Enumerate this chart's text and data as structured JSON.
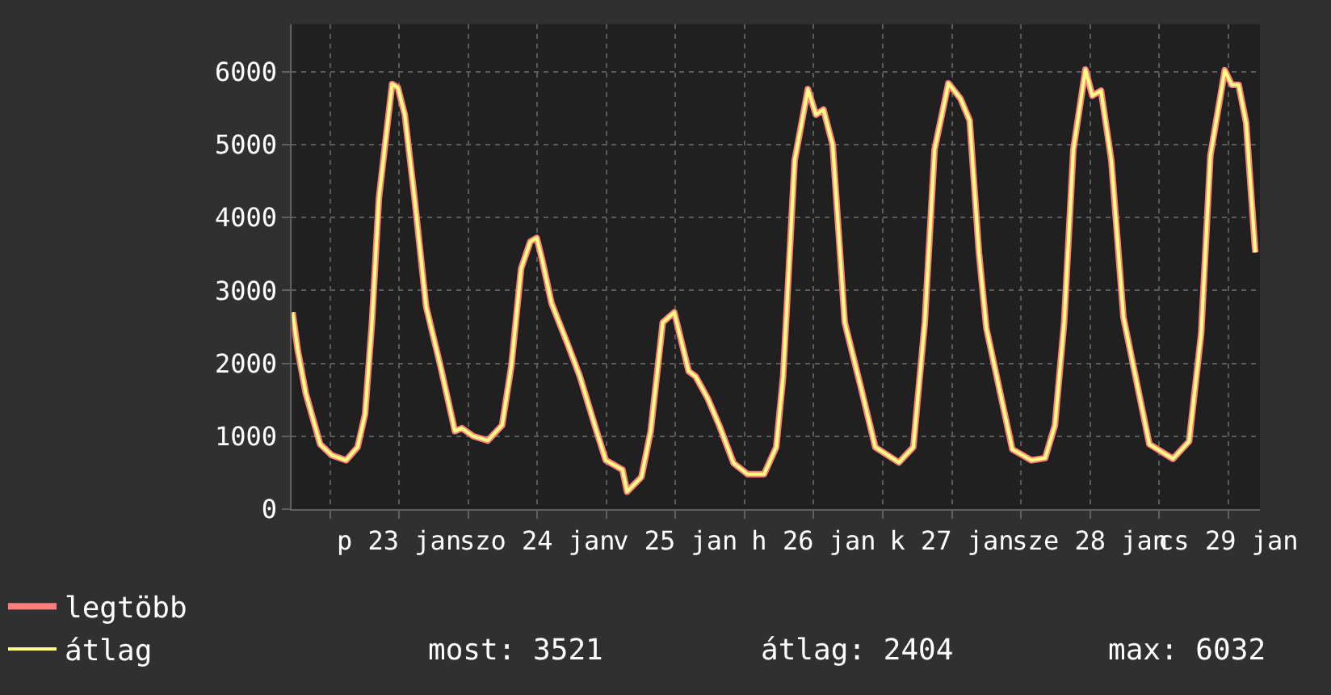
{
  "chart_data": {
    "type": "line",
    "x": [
      "--01-22T17:30",
      "--01-22T18:24",
      "--01-22T19:48",
      "--01-22T22:18",
      "--01-23T00:18",
      "--01-23T02:48",
      "--01-23T04:48",
      "--01-23T06:06",
      "--01-23T07:18",
      "--01-23T08:30",
      "--01-23T09:48",
      "--01-23T10:48",
      "--01-23T11:48",
      "--01-23T13:00",
      "--01-23T14:42",
      "--01-23T16:42",
      "--01-23T19:12",
      "--01-23T21:42",
      "--01-23T22:54",
      "--01-24T00:54",
      "--01-24T03:24",
      "--01-24T05:54",
      "--01-24T07:30",
      "--01-24T09:12",
      "--01-24T10:48",
      "--01-24T11:54",
      "--01-24T12:48",
      "--01-24T14:30",
      "--01-24T17:18",
      "--01-24T19:24",
      "--01-24T22:18",
      "--01-24T23:54",
      "--01-25T02:48",
      "--01-25T03:36",
      "--01-25T06:06",
      "--01-25T07:42",
      "--01-25T09:48",
      "--01-25T11:48",
      "--01-25T14:18",
      "--01-25T15:30",
      "--01-25T17:36",
      "--01-25T19:36",
      "--01-25T22:06",
      "--01-26T00:30",
      "--01-26T03:24",
      "--01-26T05:30",
      "--01-26T06:42",
      "--01-26T08:42",
      "--01-26T11:00",
      "--01-26T12:24",
      "--01-26T13:42",
      "--01-26T15:18",
      "--01-26T17:24",
      "--01-26T20:12",
      "--01-26T22:42",
      "--01-27T02:48",
      "--01-27T05:18",
      "--01-27T07:18",
      "--01-27T09:00",
      "--01-27T11:24",
      "--01-27T13:30",
      "--01-27T15:06",
      "--01-27T16:42",
      "--01-27T18:00",
      "--01-27T22:30",
      "--01-28T01:48",
      "--01-28T04:12",
      "--01-28T05:54",
      "--01-28T07:30",
      "--01-28T09:06",
      "--01-28T11:12",
      "--01-28T12:24",
      "--01-28T13:54",
      "--01-28T15:42",
      "--01-28T17:48",
      "--01-28T22:18",
      "--01-29T02:24",
      "--01-29T05:12",
      "--01-29T07:18",
      "--01-29T08:54",
      "--01-29T11:24",
      "--01-29T12:36",
      "--01-29T13:48",
      "--01-29T15:06",
      "--01-29T15:54",
      "--01-29T16:42"
    ],
    "series": [
      {
        "name": "legtöbb",
        "color": "#ff7f7f",
        "values": [
          2700,
          2190,
          1590,
          890,
          740,
          670,
          850,
          1300,
          2560,
          4260,
          5150,
          5830,
          5780,
          5410,
          4260,
          2780,
          1960,
          1070,
          1110,
          1000,
          940,
          1150,
          1960,
          3300,
          3670,
          3720,
          3440,
          2820,
          2260,
          1820,
          1070,
          670,
          540,
          240,
          440,
          1070,
          2560,
          2700,
          1890,
          1820,
          1520,
          1150,
          630,
          480,
          480,
          850,
          1820,
          4780,
          5760,
          5410,
          5480,
          5000,
          2560,
          1670,
          850,
          640,
          850,
          2560,
          4930,
          5840,
          5630,
          5330,
          3520,
          2480,
          820,
          670,
          700,
          1150,
          2560,
          4930,
          6030,
          5670,
          5740,
          4780,
          2630,
          890,
          690,
          930,
          2410,
          4850,
          6020,
          5820,
          5820,
          5300,
          4410,
          3520
        ]
      },
      {
        "name": "átlag",
        "color": "#ffff80",
        "values": [
          2700,
          2190,
          1590,
          890,
          740,
          670,
          850,
          1300,
          2560,
          4260,
          5150,
          5830,
          5780,
          5410,
          4260,
          2780,
          1960,
          1070,
          1110,
          1000,
          940,
          1150,
          1960,
          3300,
          3670,
          3720,
          3440,
          2820,
          2260,
          1820,
          1070,
          670,
          540,
          240,
          440,
          1070,
          2560,
          2700,
          1890,
          1820,
          1520,
          1150,
          630,
          480,
          480,
          850,
          1820,
          4780,
          5760,
          5410,
          5480,
          5000,
          2560,
          1670,
          850,
          640,
          850,
          2560,
          4930,
          5840,
          5630,
          5330,
          3520,
          2480,
          820,
          670,
          700,
          1150,
          2560,
          4930,
          6030,
          5670,
          5740,
          4780,
          2630,
          890,
          690,
          930,
          2410,
          4850,
          6020,
          5820,
          5820,
          5300,
          4410,
          3520
        ]
      }
    ],
    "xlim": [
      "--01-22T17:24",
      "--01-29T17:30"
    ],
    "xticks": [
      {
        "value": "--01-23T00:00",
        "label": null
      },
      {
        "value": "--01-23T12:00",
        "label": "p 23 jan"
      },
      {
        "value": "--01-24T00:00",
        "label": null
      },
      {
        "value": "--01-24T12:00",
        "label": "szo 24 jan"
      },
      {
        "value": "--01-25T00:00",
        "label": null
      },
      {
        "value": "--01-25T12:00",
        "label": "v 25 jan"
      },
      {
        "value": "--01-26T00:00",
        "label": null
      },
      {
        "value": "--01-26T12:00",
        "label": "h 26 jan"
      },
      {
        "value": "--01-27T00:00",
        "label": null
      },
      {
        "value": "--01-27T12:00",
        "label": "k 27 jan"
      },
      {
        "value": "--01-28T00:00",
        "label": null
      },
      {
        "value": "--01-28T12:00",
        "label": "sze 28 jan"
      },
      {
        "value": "--01-29T00:00",
        "label": null
      },
      {
        "value": "--01-29T12:00",
        "label": "cs 29 jan"
      }
    ],
    "ylim": [
      0,
      6650
    ],
    "yticks": [
      0,
      1000,
      2000,
      3000,
      4000,
      5000,
      6000
    ],
    "grid": true,
    "legend": "bottom left",
    "annotations": [
      "most: 3521",
      "átlag: 2404",
      "max: 6032"
    ]
  }
}
